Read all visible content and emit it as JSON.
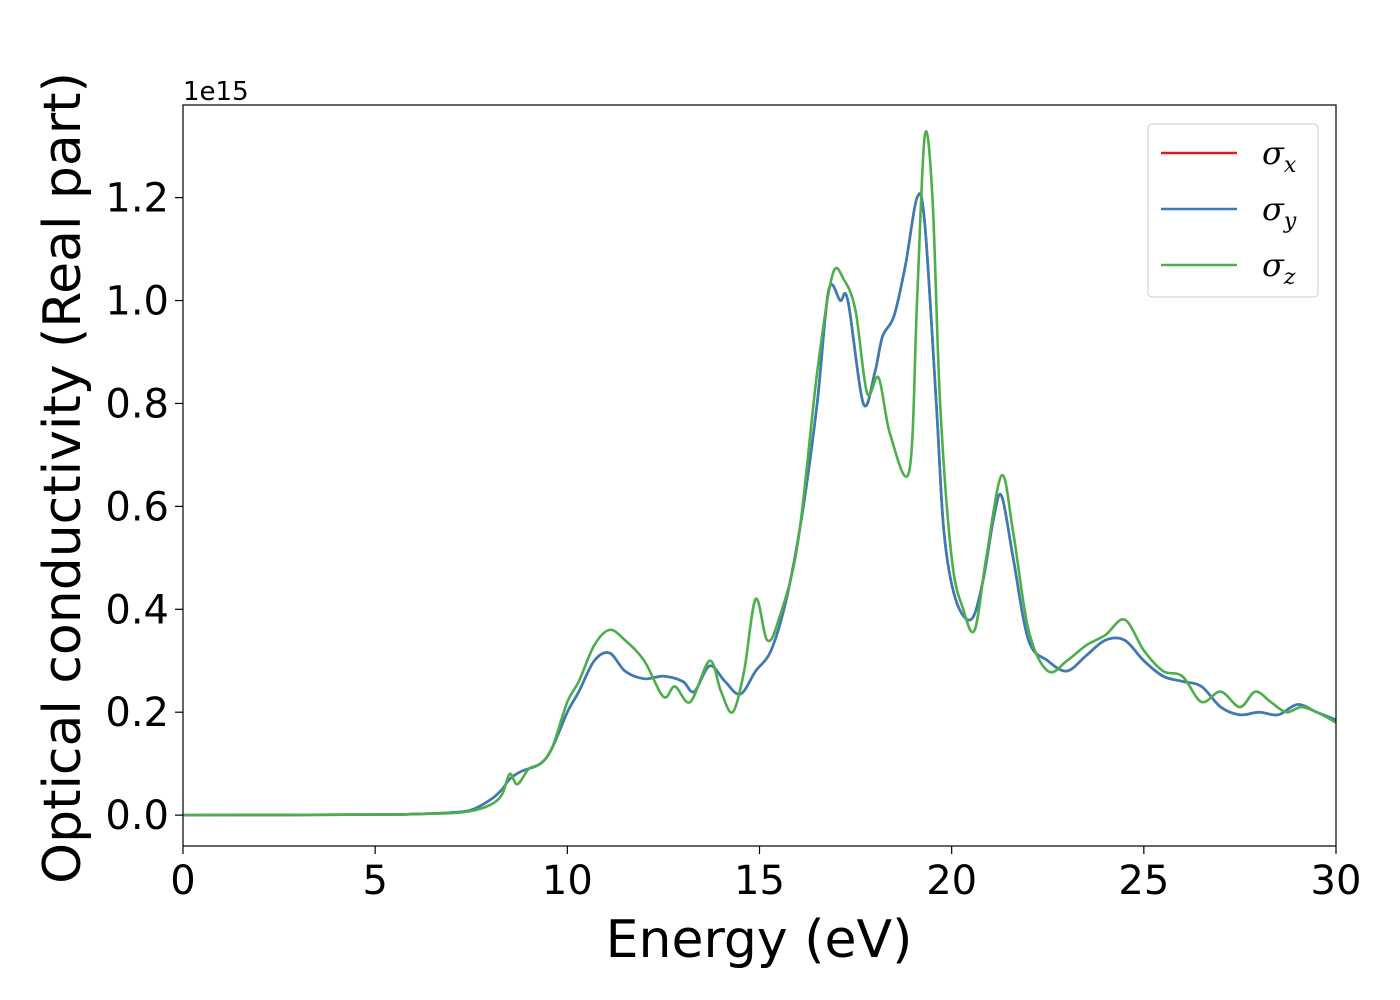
{
  "chart_data": {
    "type": "line",
    "title": "",
    "xlabel": "Energy (eV)",
    "ylabel": "Optical conductivity (Real part)",
    "y_offset_label": "1e15",
    "xlim": [
      0,
      30
    ],
    "ylim": [
      -0.06,
      1.38
    ],
    "xticks": [
      0,
      5,
      10,
      15,
      20,
      25,
      30
    ],
    "yticks": [
      0.0,
      0.2,
      0.4,
      0.6,
      0.8,
      1.0,
      1.2
    ],
    "grid": false,
    "legend_position": "top-right",
    "colors": {
      "sigma_x": "#e41a1c",
      "sigma_y": "#377eb8",
      "sigma_z": "#4daf4a"
    },
    "legend": [
      {
        "base": "σ",
        "sub": "x",
        "color": "#e41a1c"
      },
      {
        "base": "σ",
        "sub": "y",
        "color": "#377eb8"
      },
      {
        "base": "σ",
        "sub": "z",
        "color": "#4daf4a"
      }
    ],
    "series": [
      {
        "name": "σx",
        "x": [
          0,
          5,
          6,
          7,
          7.5,
          8,
          8.3,
          8.5,
          8.8,
          9.3,
          9.6,
          10,
          10.3,
          10.7,
          11.1,
          11.5,
          12,
          12.5,
          13,
          13.3,
          13.7,
          14.1,
          14.5,
          14.9,
          15.3,
          15.7,
          16.1,
          16.5,
          16.8,
          17.1,
          17.3,
          17.7,
          18,
          18.2,
          18.5,
          18.8,
          19.1,
          19.3,
          19.6,
          19.8,
          20.1,
          20.5,
          20.8,
          21.1,
          21.3,
          21.6,
          22,
          22.5,
          23,
          23.5,
          24,
          24.5,
          25,
          25.5,
          26,
          26.5,
          27,
          27.5,
          28,
          28.5,
          29,
          29.5,
          30
        ],
        "y": [
          0,
          0.001,
          0.002,
          0.005,
          0.01,
          0.03,
          0.05,
          0.07,
          0.085,
          0.1,
          0.13,
          0.2,
          0.24,
          0.3,
          0.315,
          0.28,
          0.265,
          0.27,
          0.26,
          0.24,
          0.29,
          0.26,
          0.235,
          0.28,
          0.32,
          0.42,
          0.58,
          0.8,
          1.02,
          1.0,
          1.0,
          0.8,
          0.86,
          0.93,
          0.97,
          1.07,
          1.2,
          1.15,
          0.8,
          0.55,
          0.42,
          0.38,
          0.45,
          0.58,
          0.62,
          0.5,
          0.34,
          0.3,
          0.28,
          0.31,
          0.34,
          0.34,
          0.3,
          0.27,
          0.26,
          0.25,
          0.21,
          0.195,
          0.2,
          0.195,
          0.215,
          0.2,
          0.185
        ]
      },
      {
        "name": "σy",
        "x": [
          0,
          5,
          6,
          7,
          7.5,
          8,
          8.3,
          8.5,
          8.8,
          9.3,
          9.6,
          10,
          10.3,
          10.7,
          11.1,
          11.5,
          12,
          12.5,
          13,
          13.3,
          13.7,
          14.1,
          14.5,
          14.9,
          15.3,
          15.7,
          16.1,
          16.5,
          16.8,
          17.1,
          17.3,
          17.7,
          18,
          18.2,
          18.5,
          18.8,
          19.1,
          19.3,
          19.6,
          19.8,
          20.1,
          20.5,
          20.8,
          21.1,
          21.3,
          21.6,
          22,
          22.5,
          23,
          23.5,
          24,
          24.5,
          25,
          25.5,
          26,
          26.5,
          27,
          27.5,
          28,
          28.5,
          29,
          29.5,
          30
        ],
        "y": [
          0,
          0.001,
          0.002,
          0.005,
          0.01,
          0.03,
          0.05,
          0.07,
          0.085,
          0.1,
          0.13,
          0.2,
          0.24,
          0.3,
          0.315,
          0.28,
          0.265,
          0.27,
          0.26,
          0.24,
          0.29,
          0.26,
          0.235,
          0.28,
          0.32,
          0.42,
          0.58,
          0.8,
          1.02,
          1.0,
          1.0,
          0.8,
          0.86,
          0.93,
          0.97,
          1.07,
          1.2,
          1.15,
          0.8,
          0.55,
          0.42,
          0.38,
          0.45,
          0.58,
          0.62,
          0.5,
          0.34,
          0.3,
          0.28,
          0.31,
          0.34,
          0.34,
          0.3,
          0.27,
          0.26,
          0.25,
          0.21,
          0.195,
          0.2,
          0.195,
          0.215,
          0.2,
          0.185
        ]
      },
      {
        "name": "σz",
        "x": [
          0,
          5,
          6,
          7,
          7.5,
          8,
          8.3,
          8.5,
          8.7,
          9,
          9.3,
          9.6,
          10,
          10.3,
          10.7,
          11.1,
          11.5,
          12,
          12.5,
          12.8,
          13.2,
          13.7,
          14,
          14.3,
          14.6,
          14.9,
          15.2,
          15.5,
          16,
          16.5,
          16.9,
          17.2,
          17.5,
          17.8,
          18.1,
          18.4,
          18.9,
          19.1,
          19.3,
          19.5,
          19.7,
          20,
          20.3,
          20.6,
          20.9,
          21.3,
          21.6,
          22,
          22.5,
          23,
          23.5,
          24,
          24.5,
          25,
          25.5,
          26,
          26.5,
          27,
          27.5,
          27.9,
          28.3,
          28.7,
          29.1,
          29.5,
          30
        ],
        "y": [
          0,
          0.001,
          0.002,
          0.004,
          0.008,
          0.02,
          0.04,
          0.08,
          0.06,
          0.09,
          0.1,
          0.13,
          0.22,
          0.26,
          0.33,
          0.36,
          0.34,
          0.3,
          0.23,
          0.25,
          0.22,
          0.3,
          0.24,
          0.2,
          0.28,
          0.42,
          0.34,
          0.38,
          0.53,
          0.86,
          1.05,
          1.04,
          0.98,
          0.82,
          0.85,
          0.74,
          0.67,
          1.0,
          1.32,
          1.2,
          0.8,
          0.5,
          0.4,
          0.36,
          0.5,
          0.66,
          0.55,
          0.36,
          0.28,
          0.3,
          0.33,
          0.35,
          0.38,
          0.32,
          0.28,
          0.27,
          0.22,
          0.24,
          0.21,
          0.24,
          0.22,
          0.2,
          0.21,
          0.2,
          0.18
        ]
      }
    ]
  }
}
